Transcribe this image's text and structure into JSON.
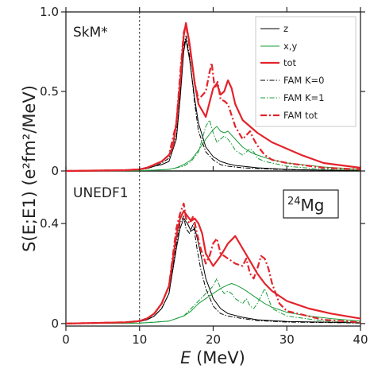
{
  "chart_data": {
    "type": "line",
    "x_label_italic": "E",
    "x_label_unit": " (MeV)",
    "y_label": "S(E;E1) (e²fm²/MeV)",
    "xlim": [
      0,
      40
    ],
    "x_ticks": [
      "0",
      "10",
      "20",
      "30",
      "40"
    ],
    "vline_x": 10,
    "nucleus": {
      "mass": "24",
      "symbol": "Mg"
    },
    "legend": [
      "z",
      "x,y",
      "tot",
      "FAM K=0",
      "FAM K=1",
      "FAM tot"
    ],
    "colors": {
      "z": "#000000",
      "xy": "#1a9c3a",
      "tot": "#e3242b"
    },
    "panels": [
      {
        "label": "SkM*",
        "ylim": [
          0,
          1.0
        ],
        "y_ticks": [
          {
            "v": 0,
            "t": "0"
          },
          {
            "v": 0.5,
            "t": "0.5"
          },
          {
            "v": 1.0,
            "t": "1.0"
          }
        ],
        "series": [
          {
            "key": "z",
            "style": "solid",
            "x": [
              0,
              8,
              10,
              11,
              12,
              13,
              14,
              15,
              15.5,
              16,
              16.3,
              16.8,
              17.5,
              18,
              19,
              20,
              21,
              22,
              23,
              24,
              26,
              28,
              30,
              35,
              40
            ],
            "y": [
              0,
              0.003,
              0.008,
              0.015,
              0.03,
              0.04,
              0.06,
              0.2,
              0.45,
              0.75,
              0.83,
              0.7,
              0.45,
              0.3,
              0.15,
              0.09,
              0.06,
              0.045,
              0.035,
              0.03,
              0.02,
              0.015,
              0.01,
              0.005,
              0.003
            ]
          },
          {
            "key": "xy",
            "style": "solid",
            "x": [
              0,
              10,
              12,
              14,
              15,
              16,
              17,
              18,
              19,
              20,
              20.5,
              21,
              21.5,
              22,
              23,
              24,
              25,
              26,
              28,
              30,
              35,
              40
            ],
            "y": [
              0,
              0.002,
              0.005,
              0.01,
              0.02,
              0.04,
              0.07,
              0.13,
              0.2,
              0.26,
              0.28,
              0.25,
              0.24,
              0.25,
              0.2,
              0.15,
              0.12,
              0.1,
              0.07,
              0.05,
              0.025,
              0.01
            ]
          },
          {
            "key": "tot",
            "style": "solid",
            "x": [
              0,
              8,
              10,
              11,
              12,
              13,
              14,
              14.5,
              15,
              15.5,
              16,
              16.3,
              16.8,
              17.5,
              18,
              19,
              20,
              20.5,
              21,
              21.5,
              22,
              22.5,
              23,
              24,
              25,
              26,
              28,
              30,
              32,
              35,
              40
            ],
            "y": [
              0,
              0.005,
              0.01,
              0.02,
              0.04,
              0.06,
              0.1,
              0.15,
              0.3,
              0.55,
              0.85,
              0.93,
              0.8,
              0.55,
              0.42,
              0.34,
              0.52,
              0.55,
              0.48,
              0.5,
              0.57,
              0.52,
              0.42,
              0.32,
              0.28,
              0.24,
              0.18,
              0.14,
              0.1,
              0.05,
              0.02
            ]
          },
          {
            "key": "z",
            "style": "dashdot",
            "x": [
              0,
              8,
              10,
              11,
              12,
              13,
              14,
              15,
              15.5,
              16,
              16.3,
              16.8,
              17.5,
              18,
              19,
              20,
              21,
              22,
              24,
              26,
              30,
              40
            ],
            "y": [
              0,
              0.003,
              0.008,
              0.015,
              0.03,
              0.05,
              0.08,
              0.22,
              0.5,
              0.78,
              0.85,
              0.72,
              0.42,
              0.25,
              0.12,
              0.07,
              0.04,
              0.03,
              0.02,
              0.015,
              0.008,
              0.002
            ]
          },
          {
            "key": "xy",
            "style": "dashdot",
            "x": [
              0,
              10,
              14,
              16,
              17,
              18,
              19,
              19.5,
              20,
              20.5,
              21,
              21.5,
              22,
              22.5,
              23,
              24,
              25,
              25.5,
              26,
              27,
              28,
              30,
              35,
              40
            ],
            "y": [
              0,
              0.002,
              0.01,
              0.03,
              0.06,
              0.12,
              0.28,
              0.32,
              0.24,
              0.18,
              0.2,
              0.22,
              0.2,
              0.17,
              0.13,
              0.1,
              0.14,
              0.12,
              0.08,
              0.06,
              0.05,
              0.03,
              0.01,
              0.005
            ]
          },
          {
            "key": "tot",
            "style": "dashdot",
            "x": [
              0,
              8,
              10,
              11,
              12,
              13,
              14,
              15,
              15.5,
              16,
              16.3,
              16.8,
              17.5,
              18,
              19,
              19.5,
              19.8,
              20.2,
              20.6,
              21,
              21.5,
              22,
              22.5,
              23,
              24,
              25,
              25.5,
              26,
              27,
              28,
              30,
              35,
              40
            ],
            "y": [
              0,
              0.005,
              0.01,
              0.02,
              0.04,
              0.06,
              0.1,
              0.3,
              0.6,
              0.87,
              0.92,
              0.78,
              0.55,
              0.45,
              0.5,
              0.62,
              0.68,
              0.52,
              0.56,
              0.45,
              0.44,
              0.42,
              0.35,
              0.28,
              0.2,
              0.25,
              0.2,
              0.16,
              0.1,
              0.07,
              0.05,
              0.02,
              0.01
            ]
          }
        ]
      },
      {
        "label": "UNEDF1",
        "ylim": [
          -0.01,
          0.61
        ],
        "y_ticks": [
          {
            "v": 0,
            "t": "0"
          },
          {
            "v": 0.4,
            "t": "0.4"
          }
        ],
        "series": [
          {
            "key": "z",
            "style": "solid",
            "x": [
              0,
              8,
              10,
              11,
              12,
              13,
              14,
              15,
              15.5,
              16,
              16.5,
              17,
              17.5,
              18,
              18.5,
              19,
              20,
              21,
              22,
              24,
              26,
              30,
              40
            ],
            "y": [
              0,
              0.003,
              0.008,
              0.015,
              0.03,
              0.06,
              0.12,
              0.3,
              0.38,
              0.42,
              0.4,
              0.37,
              0.38,
              0.32,
              0.25,
              0.18,
              0.1,
              0.06,
              0.04,
              0.025,
              0.015,
              0.008,
              0.003
            ]
          },
          {
            "key": "xy",
            "style": "solid",
            "x": [
              0,
              10,
              12,
              14,
              16,
              17,
              18,
              19,
              20,
              21,
              22,
              22.5,
              23,
              24,
              25,
              26,
              27,
              28,
              30,
              33,
              36,
              40
            ],
            "y": [
              0,
              0.002,
              0.005,
              0.01,
              0.03,
              0.05,
              0.08,
              0.1,
              0.12,
              0.14,
              0.155,
              0.16,
              0.155,
              0.14,
              0.12,
              0.1,
              0.08,
              0.065,
              0.045,
              0.03,
              0.02,
              0.01
            ]
          },
          {
            "key": "tot",
            "style": "solid",
            "x": [
              0,
              8,
              10,
              11,
              12,
              13,
              14,
              15,
              15.5,
              16,
              16.5,
              17,
              17.5,
              18,
              18.5,
              19,
              20,
              21,
              22,
              23,
              24,
              25,
              26,
              27,
              28,
              30,
              33,
              36,
              40
            ],
            "y": [
              0,
              0.005,
              0.01,
              0.02,
              0.04,
              0.08,
              0.15,
              0.35,
              0.42,
              0.45,
              0.43,
              0.41,
              0.42,
              0.4,
              0.36,
              0.28,
              0.23,
              0.27,
              0.32,
              0.35,
              0.3,
              0.25,
              0.2,
              0.16,
              0.13,
              0.09,
              0.06,
              0.04,
              0.02
            ]
          },
          {
            "key": "z",
            "style": "dashdot",
            "x": [
              0,
              8,
              10,
              11,
              12,
              13,
              14,
              15,
              15.5,
              16,
              16.3,
              16.8,
              17.3,
              17.8,
              18.3,
              19,
              20,
              21,
              22,
              24,
              26,
              30,
              40
            ],
            "y": [
              0,
              0.003,
              0.008,
              0.015,
              0.03,
              0.06,
              0.12,
              0.32,
              0.4,
              0.43,
              0.38,
              0.36,
              0.4,
              0.3,
              0.22,
              0.14,
              0.07,
              0.04,
              0.03,
              0.02,
              0.012,
              0.006,
              0.002
            ]
          },
          {
            "key": "xy",
            "style": "dashdot",
            "x": [
              0,
              10,
              14,
              16,
              17,
              18,
              19,
              20,
              20.5,
              21,
              21.5,
              22,
              22.5,
              23,
              24,
              24.5,
              25,
              25.5,
              26,
              26.5,
              27,
              27.5,
              28,
              30,
              35,
              40
            ],
            "y": [
              0,
              0.002,
              0.01,
              0.03,
              0.06,
              0.09,
              0.12,
              0.15,
              0.18,
              0.14,
              0.12,
              0.13,
              0.12,
              0.1,
              0.08,
              0.1,
              0.07,
              0.06,
              0.08,
              0.11,
              0.14,
              0.1,
              0.06,
              0.03,
              0.01,
              0.005
            ]
          },
          {
            "key": "tot",
            "style": "dashdot",
            "x": [
              0,
              8,
              10,
              11,
              12,
              13,
              14,
              15,
              15.5,
              16,
              16.3,
              16.8,
              17.3,
              17.8,
              18.3,
              19,
              19.5,
              20,
              20.5,
              21,
              21.5,
              22,
              23,
              24,
              24.5,
              25,
              25.5,
              26,
              26.5,
              27,
              27.5,
              28,
              29,
              30,
              35,
              40
            ],
            "y": [
              0,
              0.005,
              0.01,
              0.02,
              0.04,
              0.08,
              0.15,
              0.38,
              0.44,
              0.48,
              0.42,
              0.4,
              0.43,
              0.36,
              0.3,
              0.24,
              0.27,
              0.32,
              0.34,
              0.28,
              0.27,
              0.26,
              0.24,
              0.23,
              0.26,
              0.2,
              0.18,
              0.22,
              0.27,
              0.26,
              0.22,
              0.16,
              0.08,
              0.05,
              0.015,
              0.005
            ]
          }
        ]
      }
    ]
  }
}
